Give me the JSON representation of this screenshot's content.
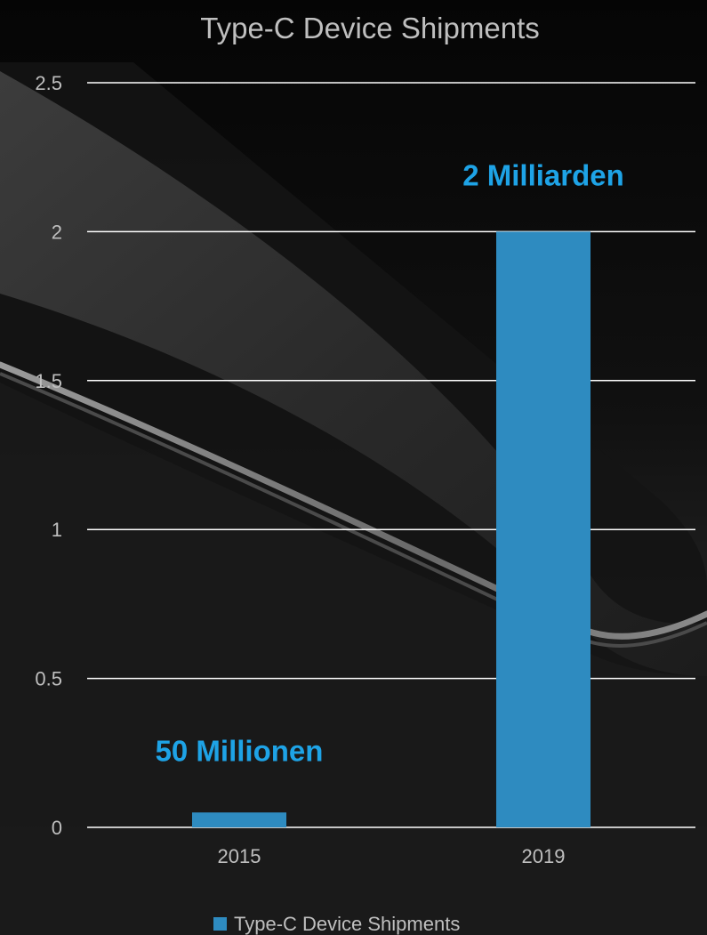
{
  "chart_data": {
    "type": "bar",
    "title": "Type-C Device Shipments",
    "categories": [
      "2015",
      "2019"
    ],
    "series": [
      {
        "name": "Type-C Device Shipments",
        "values": [
          0.05,
          2
        ]
      }
    ],
    "data_labels": [
      "50 Millionen",
      "2 Milliarden"
    ],
    "yticks": [
      "0",
      "0.5",
      "1",
      "1.5",
      "2",
      "2.5"
    ],
    "ylim": [
      0,
      2.5
    ],
    "grid": true,
    "legend_position": "bottom",
    "colors": {
      "bar": "#2e8bc0",
      "data_label": "#1ea3e6",
      "text": "#bfbfbf",
      "gridline": "#ffffff"
    }
  }
}
